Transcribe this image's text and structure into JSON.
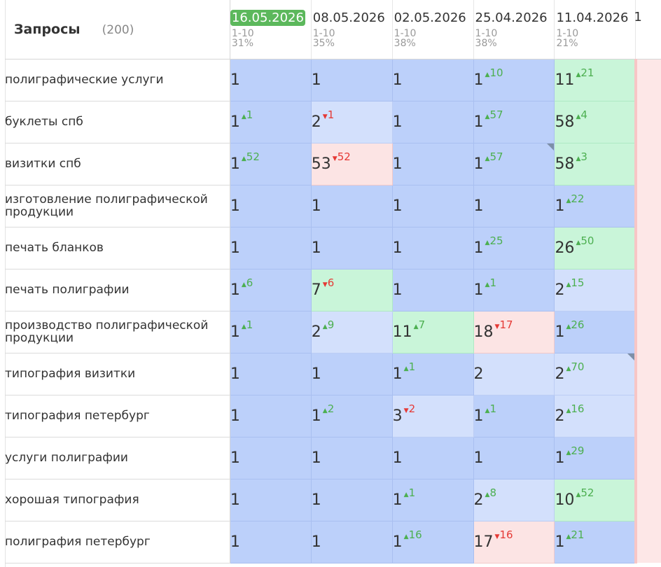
{
  "header": {
    "title": "Запросы",
    "count": "(200)"
  },
  "dates": [
    {
      "date": "16.05.2026",
      "range": "1-10",
      "pct": "31%",
      "active": true
    },
    {
      "date": "08.05.2026",
      "range": "1-10",
      "pct": "35%"
    },
    {
      "date": "02.05.2026",
      "range": "1-10",
      "pct": "38%"
    },
    {
      "date": "25.04.2026",
      "range": "1-10",
      "pct": "38%"
    },
    {
      "date": "11.04.2026",
      "range": "1-10",
      "pct": "21%"
    }
  ],
  "edge_header": "1",
  "rows": [
    {
      "query": "полиграфические услуги",
      "cells": [
        {
          "v": "1",
          "bg": "strong"
        },
        {
          "v": "1",
          "bg": "strong"
        },
        {
          "v": "1",
          "bg": "strong"
        },
        {
          "v": "1",
          "c": "10",
          "d": "up",
          "bg": "strong"
        },
        {
          "v": "11",
          "c": "21",
          "d": "up",
          "bg": "green"
        }
      ]
    },
    {
      "query": "буклеты спб",
      "cells": [
        {
          "v": "1",
          "c": "1",
          "d": "up",
          "bg": "strong"
        },
        {
          "v": "2",
          "c": "1",
          "d": "down",
          "bg": "light"
        },
        {
          "v": "1",
          "bg": "strong"
        },
        {
          "v": "1",
          "c": "57",
          "d": "up",
          "bg": "strong"
        },
        {
          "v": "58",
          "c": "4",
          "d": "up",
          "bg": "green"
        }
      ]
    },
    {
      "query": "визитки спб",
      "cells": [
        {
          "v": "1",
          "c": "52",
          "d": "up",
          "bg": "strong"
        },
        {
          "v": "53",
          "c": "52",
          "d": "down",
          "bg": "red"
        },
        {
          "v": "1",
          "bg": "strong"
        },
        {
          "v": "1",
          "c": "57",
          "d": "up",
          "bg": "strong",
          "corner": true
        },
        {
          "v": "58",
          "c": "3",
          "d": "up",
          "bg": "green"
        }
      ]
    },
    {
      "query": "изготовление полиграфической продукции",
      "cells": [
        {
          "v": "1",
          "bg": "strong"
        },
        {
          "v": "1",
          "bg": "strong"
        },
        {
          "v": "1",
          "bg": "strong"
        },
        {
          "v": "1",
          "bg": "strong"
        },
        {
          "v": "1",
          "c": "22",
          "d": "up",
          "bg": "strong"
        }
      ]
    },
    {
      "query": "печать бланков",
      "cells": [
        {
          "v": "1",
          "bg": "strong"
        },
        {
          "v": "1",
          "bg": "strong"
        },
        {
          "v": "1",
          "bg": "strong"
        },
        {
          "v": "1",
          "c": "25",
          "d": "up",
          "bg": "strong"
        },
        {
          "v": "26",
          "c": "50",
          "d": "up",
          "bg": "green"
        }
      ]
    },
    {
      "query": "печать полиграфии",
      "cells": [
        {
          "v": "1",
          "c": "6",
          "d": "up",
          "bg": "strong"
        },
        {
          "v": "7",
          "c": "6",
          "d": "down",
          "bg": "green"
        },
        {
          "v": "1",
          "bg": "strong"
        },
        {
          "v": "1",
          "c": "1",
          "d": "up",
          "bg": "strong"
        },
        {
          "v": "2",
          "c": "15",
          "d": "up",
          "bg": "light"
        }
      ]
    },
    {
      "query": "производство полиграфической продукции",
      "cells": [
        {
          "v": "1",
          "c": "1",
          "d": "up",
          "bg": "strong"
        },
        {
          "v": "2",
          "c": "9",
          "d": "up",
          "bg": "light"
        },
        {
          "v": "11",
          "c": "7",
          "d": "up",
          "bg": "green"
        },
        {
          "v": "18",
          "c": "17",
          "d": "down",
          "bg": "red"
        },
        {
          "v": "1",
          "c": "26",
          "d": "up",
          "bg": "strong"
        }
      ]
    },
    {
      "query": "типография визитки",
      "cells": [
        {
          "v": "1",
          "bg": "strong"
        },
        {
          "v": "1",
          "bg": "strong"
        },
        {
          "v": "1",
          "c": "1",
          "d": "up",
          "bg": "strong"
        },
        {
          "v": "2",
          "bg": "light"
        },
        {
          "v": "2",
          "c": "70",
          "d": "up",
          "bg": "light",
          "corner": true
        }
      ]
    },
    {
      "query": "типография петербург",
      "cells": [
        {
          "v": "1",
          "bg": "strong"
        },
        {
          "v": "1",
          "c": "2",
          "d": "up",
          "bg": "strong"
        },
        {
          "v": "3",
          "c": "2",
          "d": "down",
          "bg": "light"
        },
        {
          "v": "1",
          "c": "1",
          "d": "up",
          "bg": "strong"
        },
        {
          "v": "2",
          "c": "16",
          "d": "up",
          "bg": "light"
        }
      ]
    },
    {
      "query": "услуги полиграфии",
      "cells": [
        {
          "v": "1",
          "bg": "strong"
        },
        {
          "v": "1",
          "bg": "strong"
        },
        {
          "v": "1",
          "bg": "strong"
        },
        {
          "v": "1",
          "bg": "strong"
        },
        {
          "v": "1",
          "c": "29",
          "d": "up",
          "bg": "strong"
        }
      ]
    },
    {
      "query": "хорошая типография",
      "cells": [
        {
          "v": "1",
          "bg": "strong"
        },
        {
          "v": "1",
          "bg": "strong"
        },
        {
          "v": "1",
          "c": "1",
          "d": "up",
          "bg": "strong"
        },
        {
          "v": "2",
          "c": "8",
          "d": "up",
          "bg": "light"
        },
        {
          "v": "10",
          "c": "52",
          "d": "up",
          "bg": "green"
        }
      ]
    },
    {
      "query": "полиграфия петербург",
      "cells": [
        {
          "v": "1",
          "bg": "strong"
        },
        {
          "v": "1",
          "bg": "strong"
        },
        {
          "v": "1",
          "c": "16",
          "d": "up",
          "bg": "strong"
        },
        {
          "v": "17",
          "c": "16",
          "d": "down",
          "bg": "red"
        },
        {
          "v": "1",
          "c": "21",
          "d": "up",
          "bg": "strong"
        }
      ]
    }
  ],
  "colors": {
    "strong": "#bcd0fa",
    "light": "#d3e0fc",
    "green": "#c9f5d9",
    "red": "#fce4e4",
    "up": "#4caf50",
    "down": "#e53935",
    "active_date": "#5cb85c"
  }
}
